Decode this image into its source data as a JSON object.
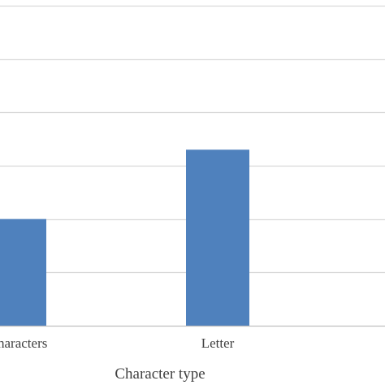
{
  "chart_data": {
    "type": "bar",
    "title": "",
    "xlabel": "Character type",
    "ylabel": "",
    "categories": [
      "e characters",
      "Letter"
    ],
    "values": [
      2,
      3.3
    ],
    "ylim": [
      0,
      6
    ],
    "grid": true,
    "legend": "none",
    "colors": {
      "bar": "#4f81bd",
      "grid": "#d9d9d9",
      "axis": "#bfbfbf",
      "text": "#404040"
    }
  }
}
